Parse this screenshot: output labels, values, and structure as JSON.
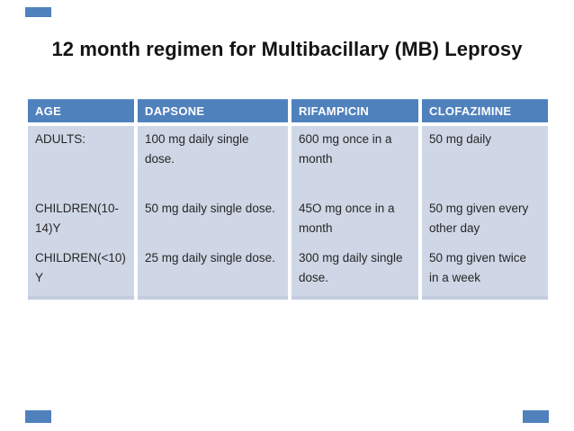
{
  "title": "12 month regimen for Multibacillary (MB) Leprosy",
  "colors": {
    "accent_bar": "#4f81bd",
    "table_header_bg": "#4f81bd",
    "table_header_text": "#ffffff",
    "table_row_bg": "#cfd7e6",
    "body_text": "#262626",
    "title_text": "#141414"
  },
  "table": {
    "columns": [
      "AGE",
      "DAPSONE",
      "RIFAMPICIN",
      "CLOFAZIMINE"
    ],
    "rows": [
      [
        "ADULTS:",
        "100 mg daily single dose.",
        "600 mg once in a month",
        "50 mg daily"
      ],
      [
        "CHILDREN(10-14)Y",
        "50 mg daily single dose.",
        "45O mg once in a month",
        "50 mg given every other day"
      ],
      [
        "CHILDREN(<10) Y",
        "25 mg daily single dose.",
        "300 mg daily single dose.",
        "50 mg given twice in a week"
      ]
    ]
  }
}
